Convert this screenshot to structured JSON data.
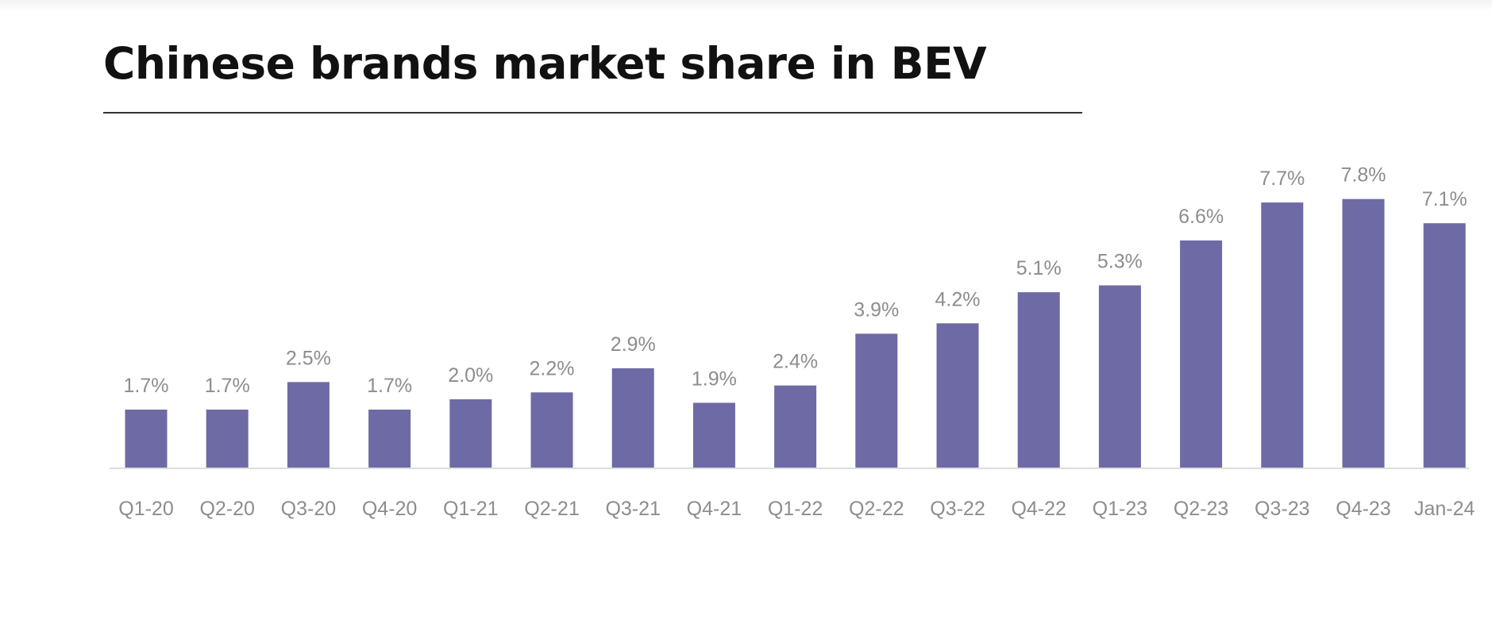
{
  "chart_data": {
    "type": "bar",
    "title": "Chinese brands market share in BEV",
    "xlabel": "",
    "ylabel": "",
    "categories": [
      "Q1-20",
      "Q2-20",
      "Q3-20",
      "Q4-20",
      "Q1-21",
      "Q2-21",
      "Q3-21",
      "Q4-21",
      "Q1-22",
      "Q2-22",
      "Q3-22",
      "Q4-22",
      "Q1-23",
      "Q2-23",
      "Q3-23",
      "Q4-23",
      "Jan-24"
    ],
    "values": [
      1.7,
      1.7,
      2.5,
      1.7,
      2.0,
      2.2,
      2.9,
      1.9,
      2.4,
      3.9,
      4.2,
      5.1,
      5.3,
      6.6,
      7.7,
      7.8,
      7.1
    ],
    "data_labels": [
      "1.7%",
      "1.7%",
      "2.5%",
      "1.7%",
      "2.0%",
      "2.2%",
      "2.9%",
      "1.9%",
      "2.4%",
      "3.9%",
      "4.2%",
      "5.1%",
      "5.3%",
      "6.6%",
      "7.7%",
      "7.8%",
      "7.1%"
    ],
    "value_unit": "%",
    "ylim": [
      0,
      9
    ],
    "grid": false,
    "legend": "none",
    "bar_color": "#6e6aa6",
    "label_color": "#8d8d8d",
    "baseline_color": "#dddddd"
  }
}
